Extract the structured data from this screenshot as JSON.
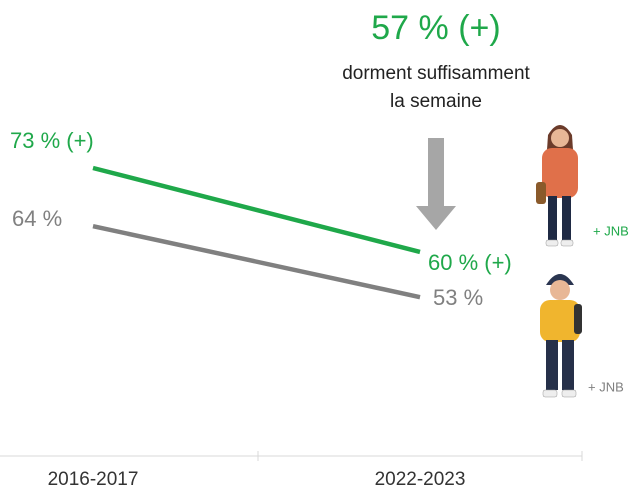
{
  "chart_data": {
    "type": "line",
    "categories": [
      "2016-2017",
      "2022-2023"
    ],
    "series": [
      {
        "color": "#1fa84a",
        "values": [
          73,
          60
        ],
        "value_labels": [
          "73 % (+)",
          "60 % (+)"
        ],
        "note": "+ JNB"
      },
      {
        "color": "#808080",
        "values": [
          64,
          53
        ],
        "value_labels": [
          "64 %",
          "53 %"
        ],
        "note": "+ JNB"
      }
    ],
    "annotation": {
      "label": "57 % (+)",
      "lines": [
        "dorment suffisamment",
        "la semaine"
      ]
    }
  }
}
